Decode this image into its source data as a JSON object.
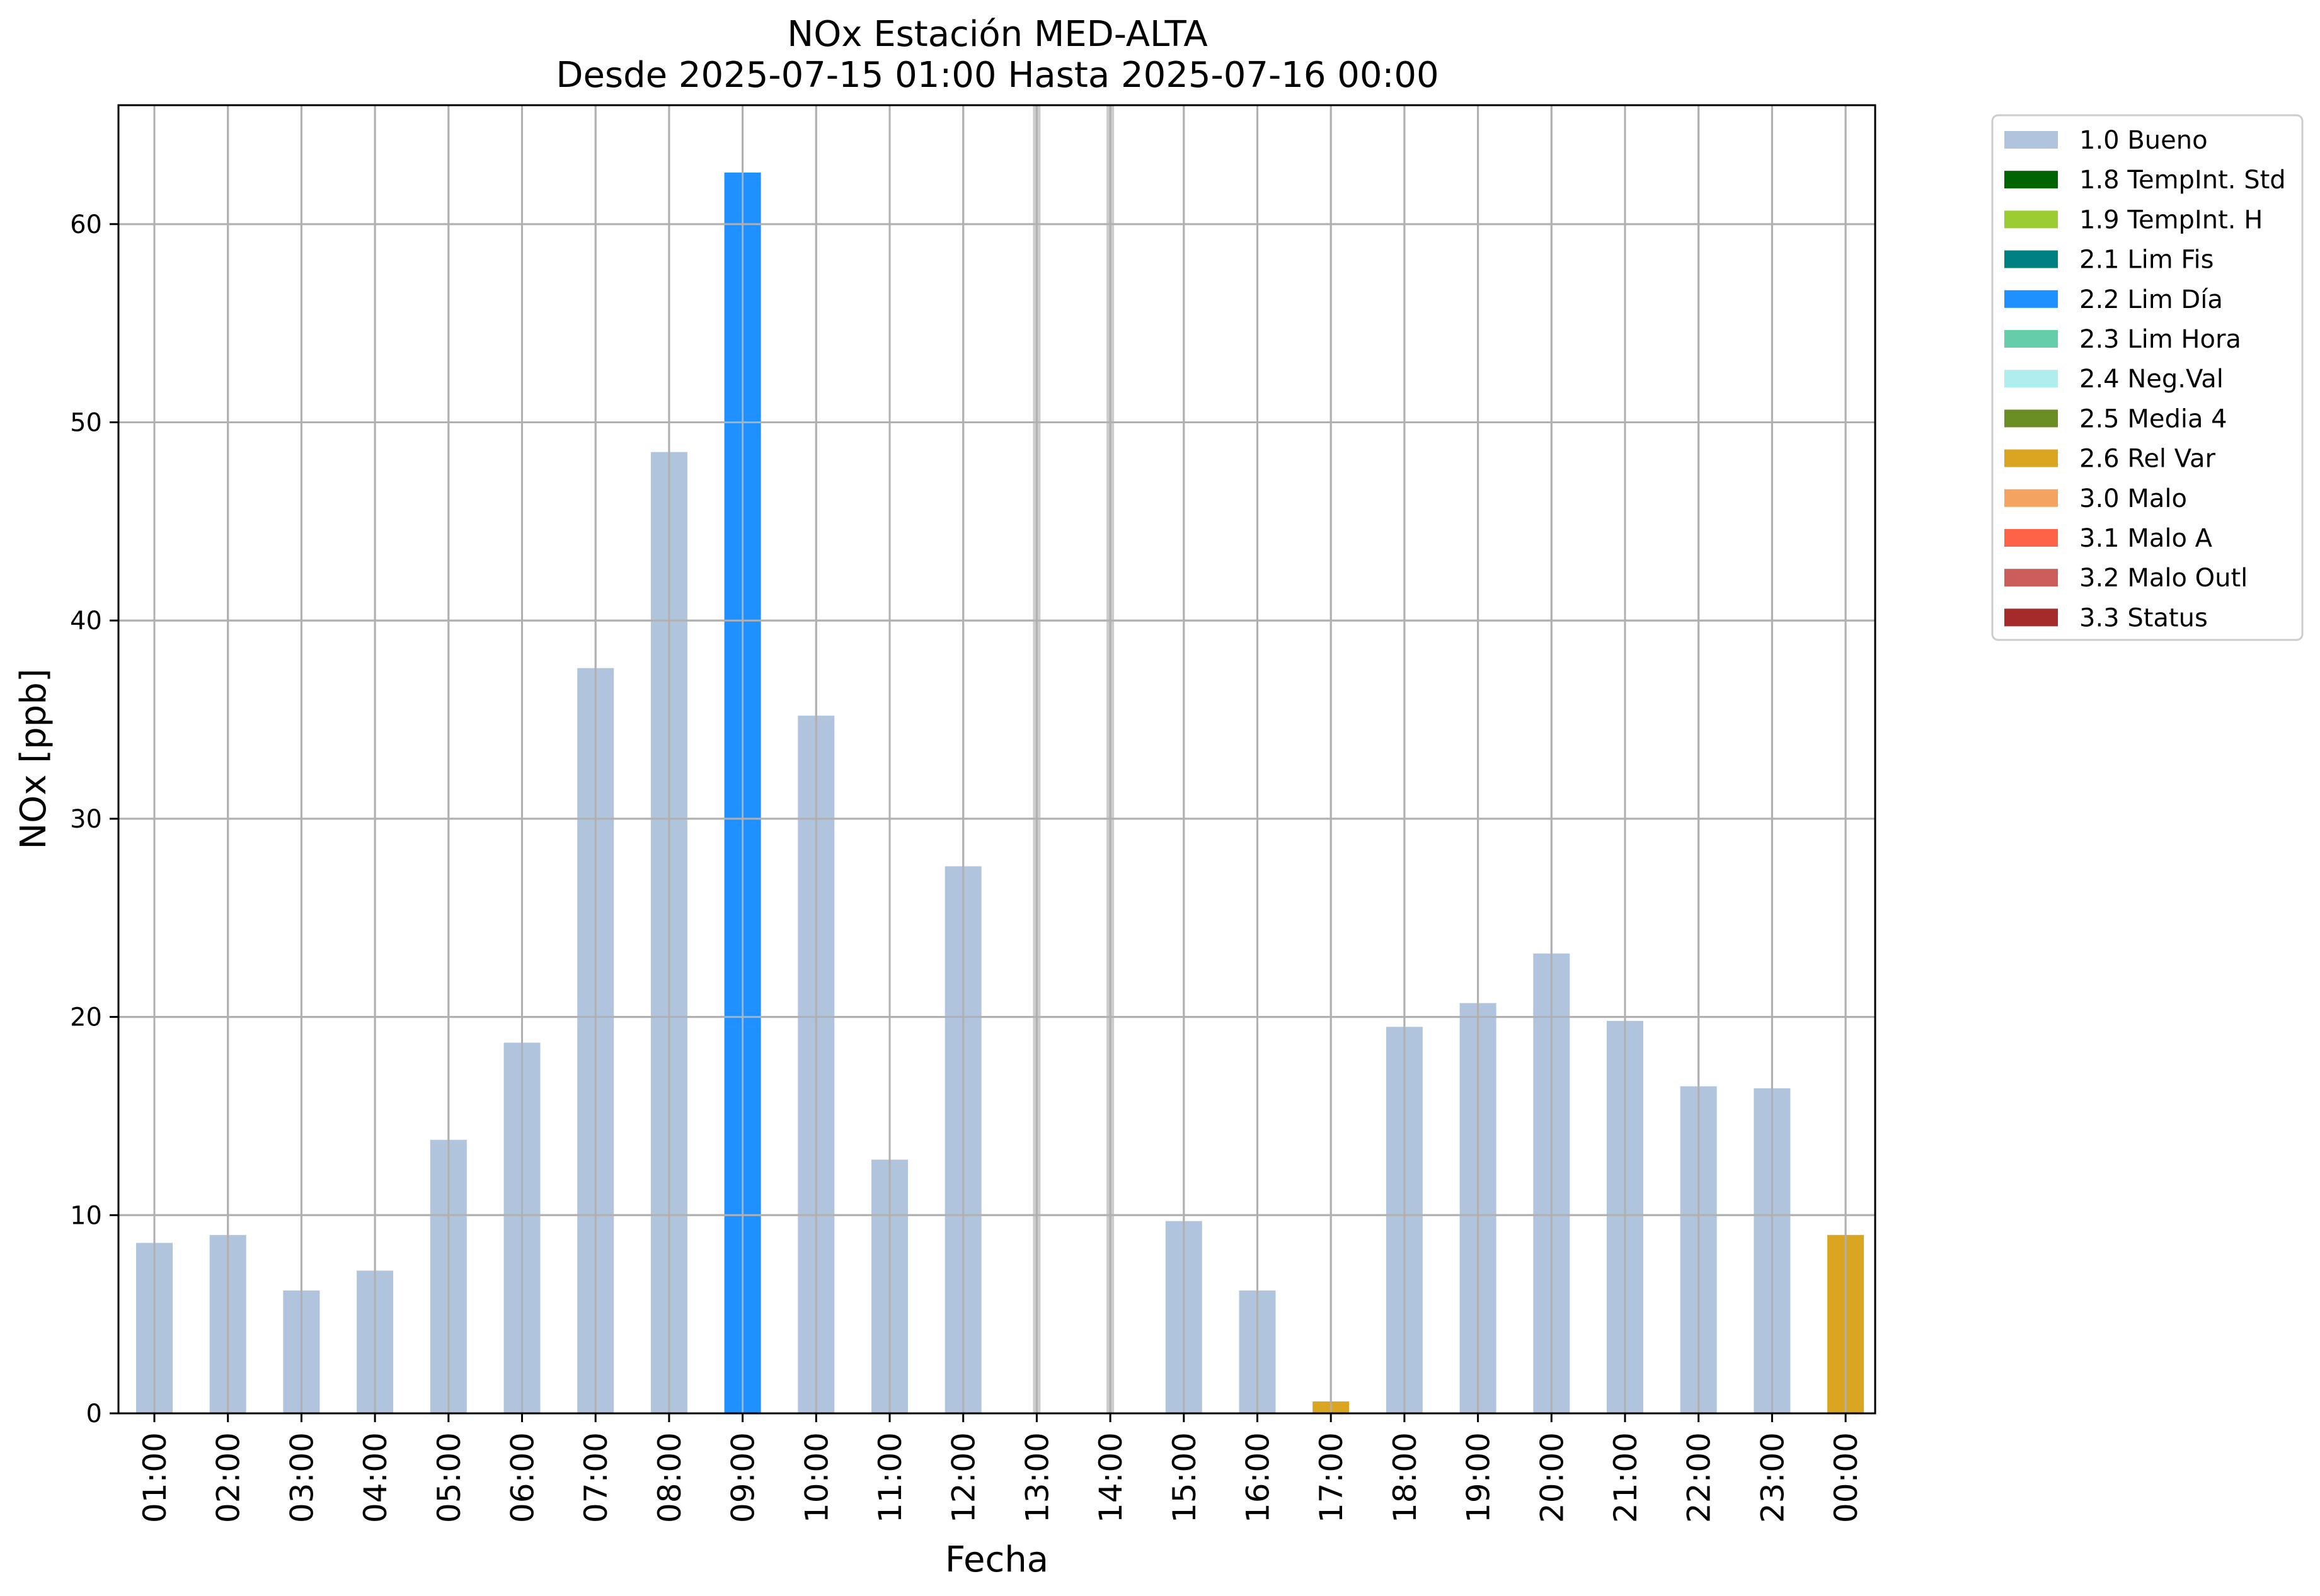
{
  "chart_data": {
    "type": "bar",
    "title": "NOx Estación MED-ALTA",
    "subtitle": "Desde 2025-07-15 01:00 Hasta 2025-07-16 00:00",
    "xlabel": "Fecha",
    "ylabel": "NOx [ppb]",
    "ylim": [
      0,
      66
    ],
    "yticks": [
      0,
      10,
      20,
      30,
      40,
      50,
      60
    ],
    "grid": true,
    "legend_position": "outside-top-right",
    "categories": [
      "01:00",
      "02:00",
      "03:00",
      "04:00",
      "05:00",
      "06:00",
      "07:00",
      "08:00",
      "09:00",
      "10:00",
      "11:00",
      "12:00",
      "13:00",
      "14:00",
      "15:00",
      "16:00",
      "17:00",
      "18:00",
      "19:00",
      "20:00",
      "21:00",
      "22:00",
      "23:00",
      "00:00"
    ],
    "values": [
      8.6,
      9.0,
      6.2,
      7.2,
      13.8,
      18.7,
      37.6,
      48.5,
      62.6,
      35.2,
      12.8,
      27.6,
      null,
      null,
      9.7,
      6.2,
      0.6,
      19.5,
      20.7,
      23.2,
      19.8,
      16.5,
      16.4,
      9.0
    ],
    "flags": [
      "1.0 Bueno",
      "1.0 Bueno",
      "1.0 Bueno",
      "1.0 Bueno",
      "1.0 Bueno",
      "1.0 Bueno",
      "1.0 Bueno",
      "1.0 Bueno",
      "2.2 Lim Día",
      "1.0 Bueno",
      "1.0 Bueno",
      "1.0 Bueno",
      null,
      null,
      "1.0 Bueno",
      "1.0 Bueno",
      "2.6 Rel Var",
      "1.0 Bueno",
      "1.0 Bueno",
      "1.0 Bueno",
      "1.0 Bueno",
      "1.0 Bueno",
      "1.0 Bueno",
      "2.6 Rel Var"
    ],
    "missing_markers": [
      "13:00",
      "14:00"
    ],
    "legend": [
      {
        "label": "1.0 Bueno",
        "color": "#b0c4de"
      },
      {
        "label": "1.8 TempInt. Std",
        "color": "#006400"
      },
      {
        "label": "1.9 TempInt. H",
        "color": "#9acd32"
      },
      {
        "label": "2.1 Lim Fis",
        "color": "#008080"
      },
      {
        "label": "2.2 Lim Día",
        "color": "#1e90ff"
      },
      {
        "label": "2.3 Lim Hora",
        "color": "#66cdaa"
      },
      {
        "label": "2.4 Neg.Val",
        "color": "#afeeee"
      },
      {
        "label": "2.5 Media 4",
        "color": "#6b8e23"
      },
      {
        "label": "2.6 Rel Var",
        "color": "#daa520"
      },
      {
        "label": "3.0 Malo",
        "color": "#f4a460"
      },
      {
        "label": "3.1 Malo A",
        "color": "#ff6347"
      },
      {
        "label": "3.2 Malo Outl",
        "color": "#cd5c5c"
      },
      {
        "label": "3.3 Status",
        "color": "#a52a2a"
      }
    ],
    "colors": {
      "grid": "#b0b0b0",
      "missing_marker": "#cccccc",
      "axis": "#000000"
    }
  }
}
